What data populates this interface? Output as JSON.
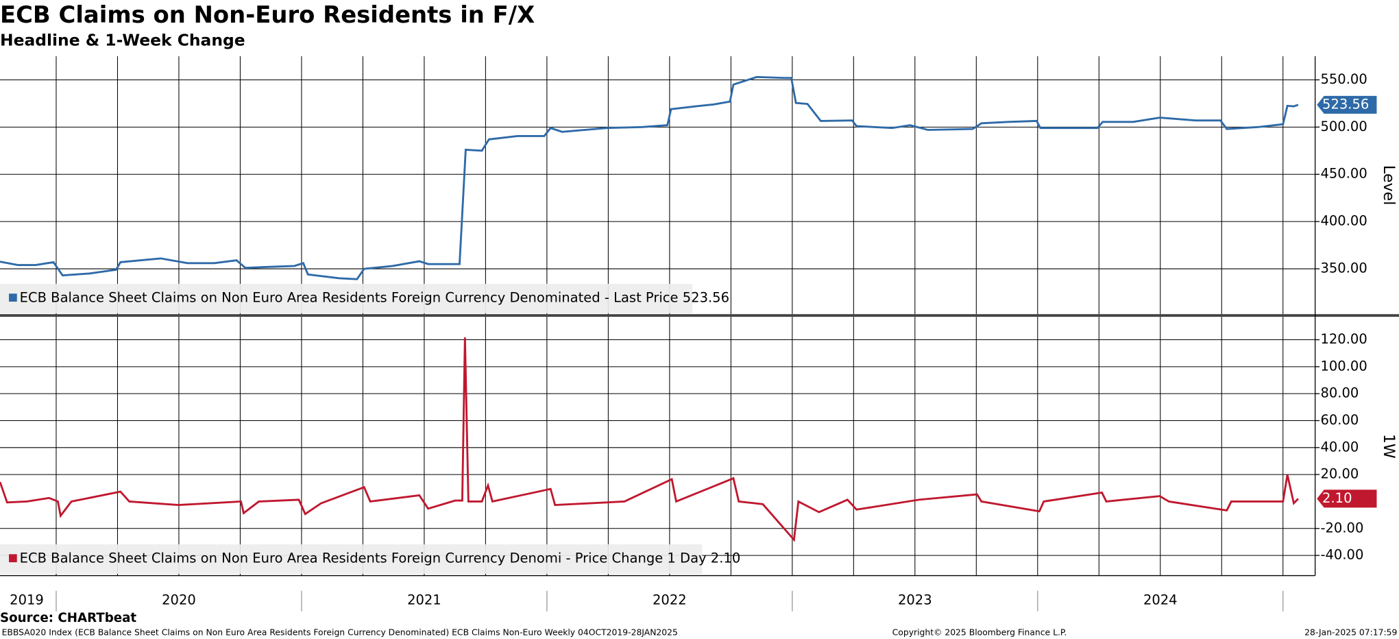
{
  "header": {
    "title": "ECB Claims on Non-Euro Residents in F/X",
    "subtitle": "Headline & 1-Week Change"
  },
  "footer": {
    "source": "Source: CHARTbeat",
    "description": "EBBSA020 Index (ECB Balance Sheet Claims on Non Euro Area Residents Foreign Currency Denominated) ECB Claims Non-Euro  Weekly 04OCT2019-28JAN2025",
    "copyright": "Copyright© 2025 Bloomberg Finance L.P.",
    "timestamp": "28-Jan-2025 07:17:59"
  },
  "chart_data": [
    {
      "type": "line",
      "y_label": "Level",
      "xlim": [
        2019.771,
        2025.131
      ],
      "ylim": [
        302,
        575
      ],
      "yticks": [
        {
          "value": 350,
          "label": "350.00"
        },
        {
          "value": 400,
          "label": "400.00"
        },
        {
          "value": 450,
          "label": "450.00"
        },
        {
          "value": 500,
          "label": "500.00"
        },
        {
          "value": 550,
          "label": "550.00"
        }
      ],
      "xgrid": [
        2020,
        2020.25,
        2020.5,
        2020.75,
        2021,
        2021.25,
        2021.5,
        2021.75,
        2022,
        2022.25,
        2022.5,
        2022.75,
        2023,
        2023.25,
        2023.5,
        2023.75,
        2024,
        2024.25,
        2024.5,
        2024.75,
        2025
      ],
      "series": [
        {
          "name": "ECB Balance Sheet Claims on Non Euro Area Residents Foreign Currency Denominated - Last Price 523.56",
          "color": "#2e6aa8",
          "last_label": "523.56",
          "x": [
            2019.771,
            2019.844,
            2019.916,
            2019.989,
            2020.026,
            2020.135,
            2020.244,
            2020.262,
            2020.426,
            2020.535,
            2020.644,
            2020.735,
            2020.771,
            2020.862,
            2020.971,
            2021.007,
            2021.026,
            2021.153,
            2021.226,
            2021.255,
            2021.371,
            2021.48,
            2021.516,
            2021.644,
            2021.669,
            2021.735,
            2021.764,
            2021.88,
            2021.989,
            2022.015,
            2022.062,
            2022.244,
            2022.389,
            2022.491,
            2022.506,
            2022.607,
            2022.68,
            2022.746,
            2022.76,
            2022.855,
            2022.971,
            2022.996,
            2023.015,
            2023.062,
            2023.116,
            2023.244,
            2023.262,
            2023.407,
            2023.48,
            2023.553,
            2023.735,
            2023.771,
            2023.88,
            2023.996,
            2024.011,
            2024.135,
            2024.244,
            2024.265,
            2024.389,
            2024.498,
            2024.644,
            2024.745,
            2024.771,
            2024.898,
            2025.0,
            2025.018,
            2025.044,
            2025.062
          ],
          "values": [
            357.5,
            354,
            354,
            357,
            343,
            345,
            349,
            357,
            361,
            356,
            356,
            359,
            351,
            352,
            353,
            356,
            344,
            340,
            339,
            350,
            353,
            358,
            355,
            355,
            476,
            475,
            487,
            490.5,
            490.5,
            499,
            495,
            499,
            500,
            502,
            519,
            522,
            524,
            527,
            545,
            553,
            552,
            552,
            525.5,
            524.5,
            506.5,
            507,
            501,
            499,
            502,
            497,
            498,
            504,
            505.5,
            506.5,
            499,
            499,
            499,
            505.5,
            505.5,
            510,
            507,
            507,
            498,
            500,
            503,
            522.5,
            522,
            523.56
          ]
        }
      ]
    },
    {
      "type": "line",
      "y_label": "1W",
      "xlim": [
        2019.771,
        2025.131
      ],
      "ylim": [
        -55,
        137
      ],
      "yticks": [
        {
          "value": -40,
          "label": "-40.00"
        },
        {
          "value": -20,
          "label": "-20.00"
        },
        {
          "value": 20,
          "label": "20.00"
        },
        {
          "value": 40,
          "label": "40.00"
        },
        {
          "value": 60,
          "label": "60.00"
        },
        {
          "value": 80,
          "label": "80.00"
        },
        {
          "value": 100,
          "label": "100.00"
        },
        {
          "value": 120,
          "label": "120.00"
        }
      ],
      "xgrid": [
        2020,
        2020.25,
        2020.5,
        2020.75,
        2021,
        2021.25,
        2021.5,
        2021.75,
        2022,
        2022.25,
        2022.5,
        2022.75,
        2023,
        2023.25,
        2023.5,
        2023.75,
        2024,
        2024.25,
        2024.5,
        2024.75,
        2025
      ],
      "xticks": [
        {
          "value": 2019.88,
          "label": "2019"
        },
        {
          "value": 2020.5,
          "label": "2020"
        },
        {
          "value": 2021.5,
          "label": "2021"
        },
        {
          "value": 2022.5,
          "label": "2022"
        },
        {
          "value": 2023.5,
          "label": "2023"
        },
        {
          "value": 2024.5,
          "label": "2024"
        }
      ],
      "series": [
        {
          "name": "ECB Balance Sheet Claims on Non Euro Area Residents Foreign Currency Denomi - Price Change 1 Day 2.10",
          "color": "#c0182f",
          "last_label": "2.10",
          "x": [
            2019.771,
            2019.8,
            2019.88,
            2019.971,
            2020.007,
            2020.018,
            2020.062,
            2020.262,
            2020.298,
            2020.498,
            2020.753,
            2020.764,
            2020.826,
            2020.989,
            2021.015,
            2021.08,
            2021.255,
            2021.28,
            2021.48,
            2021.516,
            2021.626,
            2021.655,
            2021.666,
            2021.68,
            2021.735,
            2021.76,
            2021.778,
            2022.015,
            2022.033,
            2022.316,
            2022.509,
            2022.527,
            2022.76,
            2022.782,
            2022.88,
            2023.007,
            2023.025,
            2023.109,
            2023.225,
            2023.262,
            2023.516,
            2023.753,
            2023.771,
            2024.007,
            2024.025,
            2024.262,
            2024.28,
            2024.498,
            2024.535,
            2024.771,
            2024.789,
            2025.0,
            2025.018,
            2025.044,
            2025.062
          ],
          "values": [
            14.5,
            -0.7,
            0,
            2.6,
            0,
            -10.6,
            0,
            7.3,
            0,
            -2.6,
            0,
            -8.6,
            0,
            1.3,
            -9.3,
            -1.3,
            10.6,
            0,
            4.6,
            -5.3,
            0.7,
            0.7,
            121.7,
            0,
            0,
            11.9,
            0,
            9.3,
            -2.6,
            0,
            16.5,
            0,
            17.2,
            0,
            -2,
            -28.4,
            0,
            -7.9,
            1.3,
            -6,
            1.3,
            5.3,
            0,
            -7.3,
            0,
            6.6,
            0,
            4,
            0,
            -6.6,
            0,
            0,
            19.8,
            -1.3,
            2.1
          ]
        }
      ]
    }
  ]
}
